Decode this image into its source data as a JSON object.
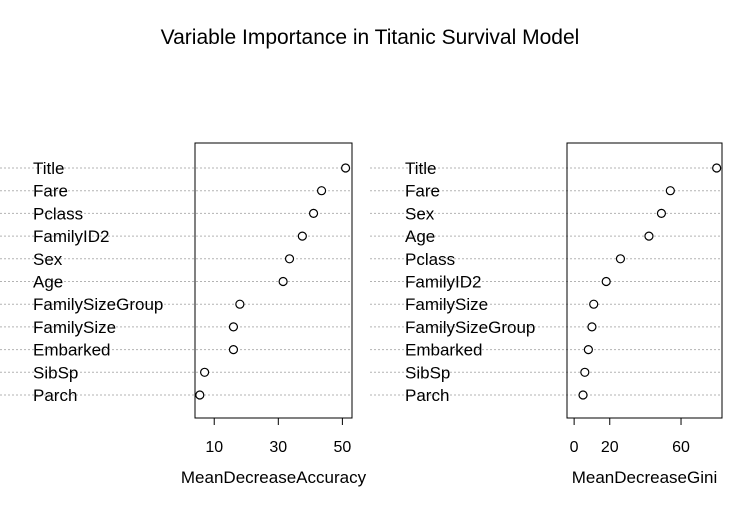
{
  "title": "Variable Importance in Titanic Survival Model",
  "chart_data": [
    {
      "type": "scatter",
      "xlabel": "MeanDecreaseAccuracy",
      "xticks": [
        10,
        30,
        50
      ],
      "xlim": [
        4,
        53
      ],
      "grid": "dotted horizontal guides",
      "categories": [
        "Title",
        "Fare",
        "Pclass",
        "FamilyID2",
        "Sex",
        "Age",
        "FamilySizeGroup",
        "FamilySize",
        "Embarked",
        "SibSp",
        "Parch"
      ],
      "values": [
        51,
        43.5,
        41,
        37.5,
        33.5,
        31.5,
        18,
        16,
        16,
        7,
        5.5
      ]
    },
    {
      "type": "scatter",
      "xlabel": "MeanDecreaseGini",
      "xticks": [
        0,
        20,
        60
      ],
      "xlim": [
        -4,
        83
      ],
      "grid": "dotted horizontal guides",
      "categories": [
        "Title",
        "Fare",
        "Sex",
        "Age",
        "Pclass",
        "FamilyID2",
        "FamilySize",
        "FamilySizeGroup",
        "Embarked",
        "SibSp",
        "Parch"
      ],
      "values": [
        80,
        54,
        49,
        42,
        26,
        18,
        11,
        10,
        8,
        6,
        5
      ]
    }
  ]
}
